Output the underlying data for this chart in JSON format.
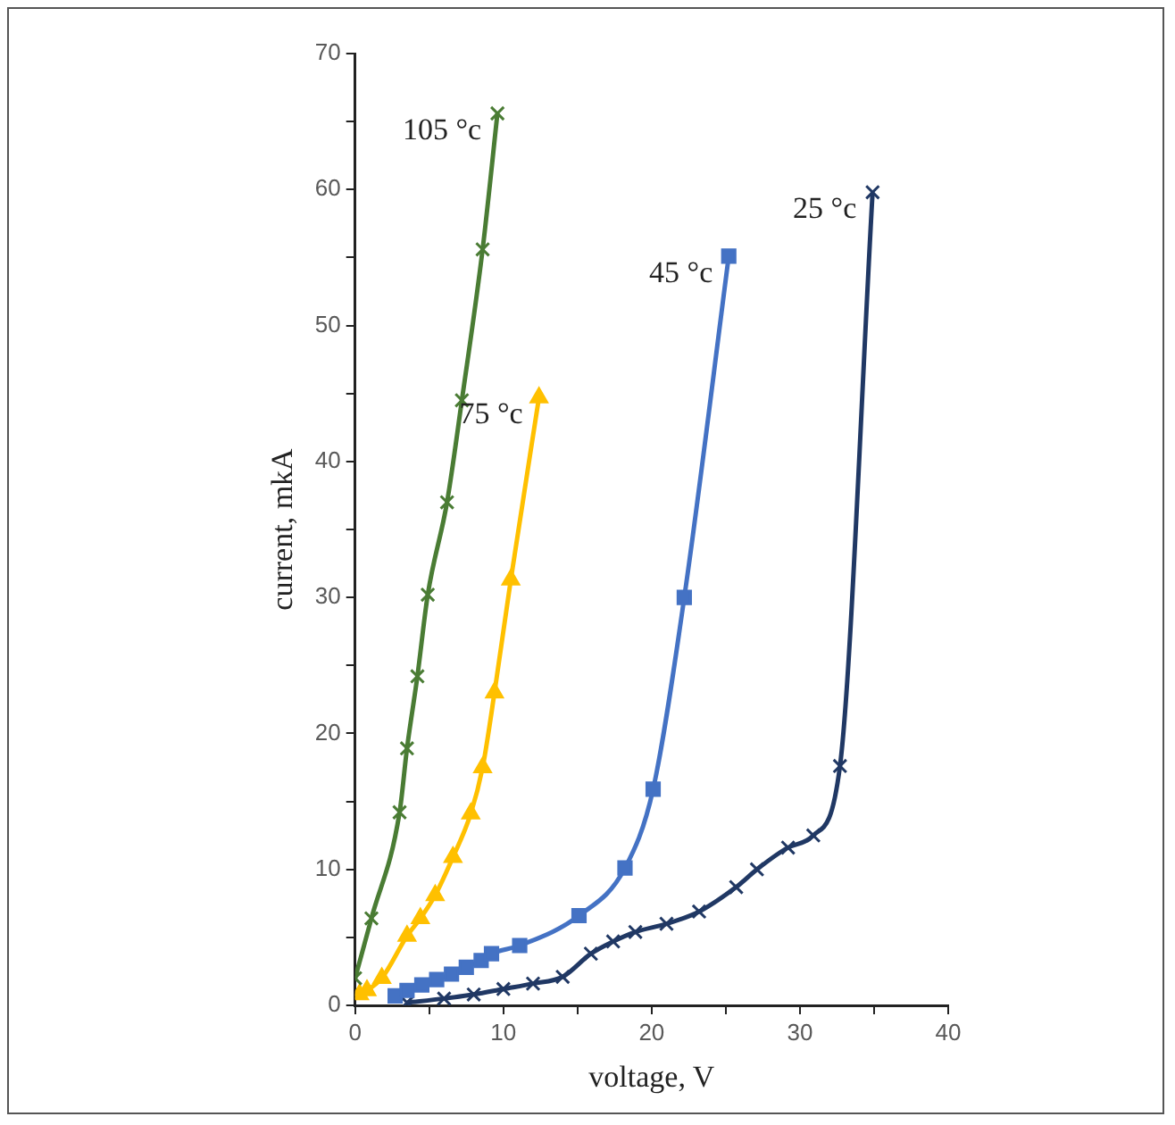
{
  "chart_data": {
    "type": "line",
    "xlabel": "voltage, V",
    "ylabel": "current, mkA",
    "xlim": [
      0,
      40
    ],
    "xticks": [
      0,
      {
        "value": 5,
        "label": null
      },
      10,
      {
        "value": 15,
        "label": null
      },
      20,
      {
        "value": 25,
        "label": null
      },
      30,
      {
        "value": 35,
        "label": null
      },
      40
    ],
    "ylim": [
      0,
      70
    ],
    "yticks": [
      0,
      {
        "value": 5,
        "label": null
      },
      10,
      {
        "value": 15,
        "label": null
      },
      20,
      {
        "value": 25,
        "label": null
      },
      30,
      {
        "value": 35,
        "label": null
      },
      40,
      {
        "value": 45,
        "label": null
      },
      50,
      {
        "value": 55,
        "label": null
      },
      60,
      {
        "value": 65,
        "label": null
      },
      70
    ],
    "grid": false,
    "legend": false,
    "series": [
      {
        "name": "105 °c",
        "color": "#4a7c34",
        "marker": "cross",
        "x": [
          0,
          1.1,
          3.0,
          3.5,
          4.2,
          4.9,
          6.2,
          7.2,
          8.6,
          9.6
        ],
        "values": [
          2,
          6.4,
          14.2,
          18.9,
          24.2,
          30.2,
          37,
          44.5,
          55.6,
          65.6
        ]
      },
      {
        "name": "75 °c",
        "color": "#ffc000",
        "marker": "triangle",
        "x": [
          0.3,
          0.8,
          1.8,
          3.5,
          4.4,
          5.4,
          6.6,
          7.8,
          8.6,
          9.4,
          10.5,
          12.4
        ],
        "values": [
          0.8,
          1.1,
          2,
          5.1,
          6.4,
          8.1,
          10.9,
          14.1,
          17.5,
          23,
          31.3,
          44.7
        ]
      },
      {
        "name": "45 °c",
        "color": "#4472c4",
        "marker": "square",
        "x": [
          2.7,
          3.5,
          4.5,
          5.5,
          6.5,
          7.5,
          8.5,
          9.2,
          11.1,
          15.1,
          18.2,
          20.1,
          22.2,
          25.2
        ],
        "values": [
          0.7,
          1.1,
          1.5,
          1.9,
          2.3,
          2.8,
          3.3,
          3.8,
          4.4,
          6.6,
          10.1,
          15.9,
          30,
          55.1
        ]
      },
      {
        "name": "25 °c",
        "color": "#203864",
        "marker": "cross",
        "x": [
          3.5,
          6,
          8,
          10,
          12,
          14,
          15.9,
          17.4,
          18.9,
          21,
          23.2,
          25.7,
          27.1,
          29.2,
          30.9,
          32.7,
          34.9
        ],
        "values": [
          0.2,
          0.5,
          0.8,
          1.2,
          1.6,
          2.1,
          3.8,
          4.7,
          5.4,
          6,
          6.9,
          8.7,
          10,
          11.6,
          12.5,
          17.6,
          59.8
        ]
      }
    ]
  }
}
